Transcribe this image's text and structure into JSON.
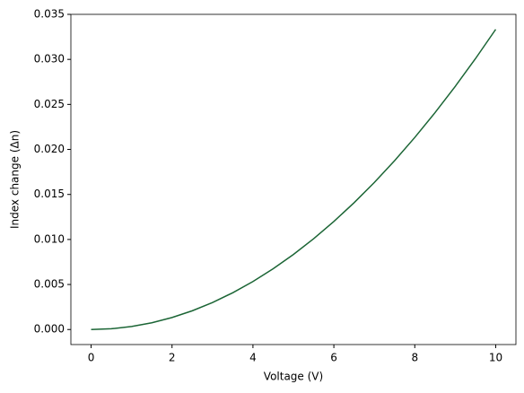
{
  "chart_data": {
    "type": "line",
    "x_label": "Voltage (V)",
    "y_label": "Index change (Δn)",
    "x": [
      0,
      0.5,
      1,
      1.5,
      2,
      2.5,
      3,
      3.5,
      4,
      4.5,
      5,
      5.5,
      6,
      6.5,
      7,
      7.5,
      8,
      8.5,
      9,
      9.5,
      10
    ],
    "series": [
      {
        "color": "#1b6535",
        "values": [
          0,
          8.33e-05,
          0.000333,
          0.00075,
          0.00133,
          0.00208,
          0.003,
          0.00408,
          0.00533,
          0.00675,
          0.00833,
          0.01008,
          0.012,
          0.01408,
          0.01633,
          0.01875,
          0.02133,
          0.02408,
          0.027,
          0.03008,
          0.03333
        ]
      }
    ],
    "xlim": [
      -0.5,
      10.5
    ],
    "xticks": [
      0,
      2,
      4,
      6,
      8,
      10
    ],
    "ylim": [
      -0.00167,
      0.035
    ],
    "yticks": [
      {
        "value": 0,
        "label": "0.000"
      },
      {
        "value": 0.005,
        "label": "0.005"
      },
      {
        "value": 0.01,
        "label": "0.010"
      },
      {
        "value": 0.015,
        "label": "0.015"
      },
      {
        "value": 0.02,
        "label": "0.020"
      },
      {
        "value": 0.025,
        "label": "0.025"
      },
      {
        "value": 0.03,
        "label": "0.030"
      },
      {
        "value": 0.035,
        "label": "0.035"
      }
    ],
    "grid": false
  }
}
